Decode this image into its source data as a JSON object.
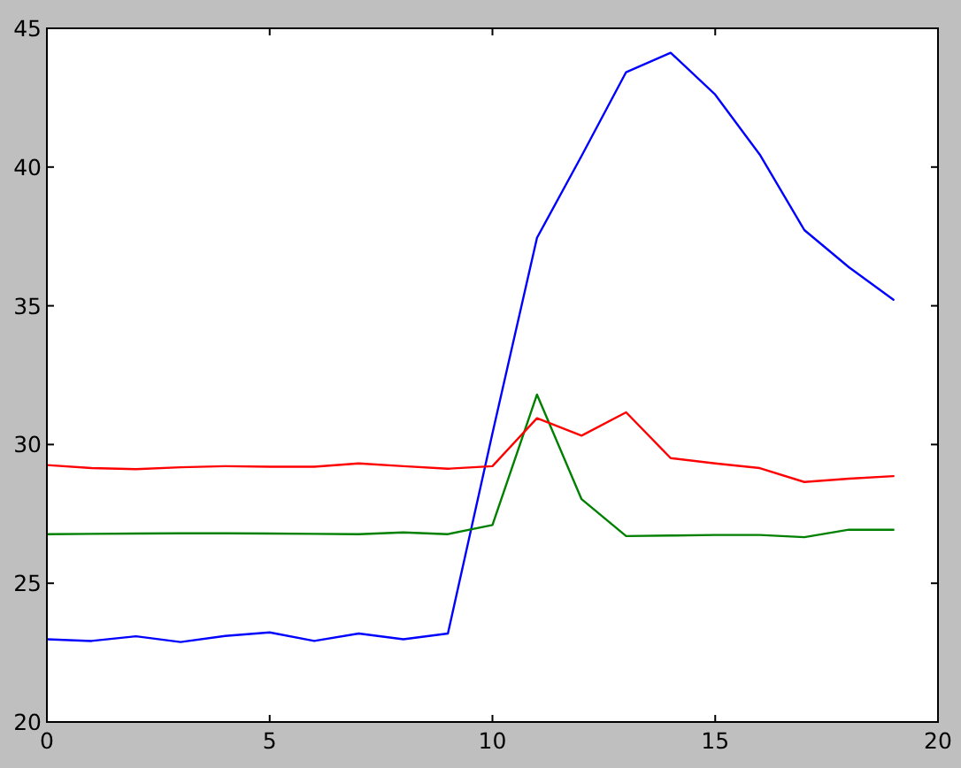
{
  "chart_data": {
    "type": "line",
    "x": [
      0,
      1,
      2,
      3,
      4,
      5,
      6,
      7,
      8,
      9,
      10,
      11,
      12,
      13,
      14,
      15,
      16,
      17,
      18,
      19
    ],
    "series": [
      {
        "color": "#0000ff",
        "values": [
          22.98,
          22.92,
          23.09,
          22.88,
          23.1,
          23.23,
          22.92,
          23.19,
          22.98,
          23.19,
          30.4,
          37.45,
          40.4,
          43.42,
          44.12,
          42.61,
          40.45,
          37.73,
          36.39,
          35.22
        ]
      },
      {
        "color": "#008000",
        "values": [
          26.77,
          26.78,
          26.79,
          26.8,
          26.8,
          26.79,
          26.78,
          26.77,
          26.83,
          26.77,
          27.1,
          31.8,
          28.03,
          26.7,
          26.72,
          26.74,
          26.74,
          26.66,
          26.93,
          26.93
        ]
      },
      {
        "color": "#ff0000",
        "values": [
          29.26,
          29.15,
          29.11,
          29.18,
          29.22,
          29.2,
          29.2,
          29.32,
          29.22,
          29.13,
          29.22,
          30.95,
          30.32,
          31.16,
          29.51,
          29.32,
          29.15,
          28.65,
          28.77,
          28.86
        ]
      }
    ],
    "xlim": [
      0,
      20
    ],
    "xticks": [
      0,
      5,
      10,
      15,
      20
    ],
    "ylim": [
      20,
      45
    ],
    "yticks": [
      20,
      25,
      30,
      35,
      40,
      45
    ],
    "grid": false,
    "marker": "none",
    "line_style": "solid"
  }
}
